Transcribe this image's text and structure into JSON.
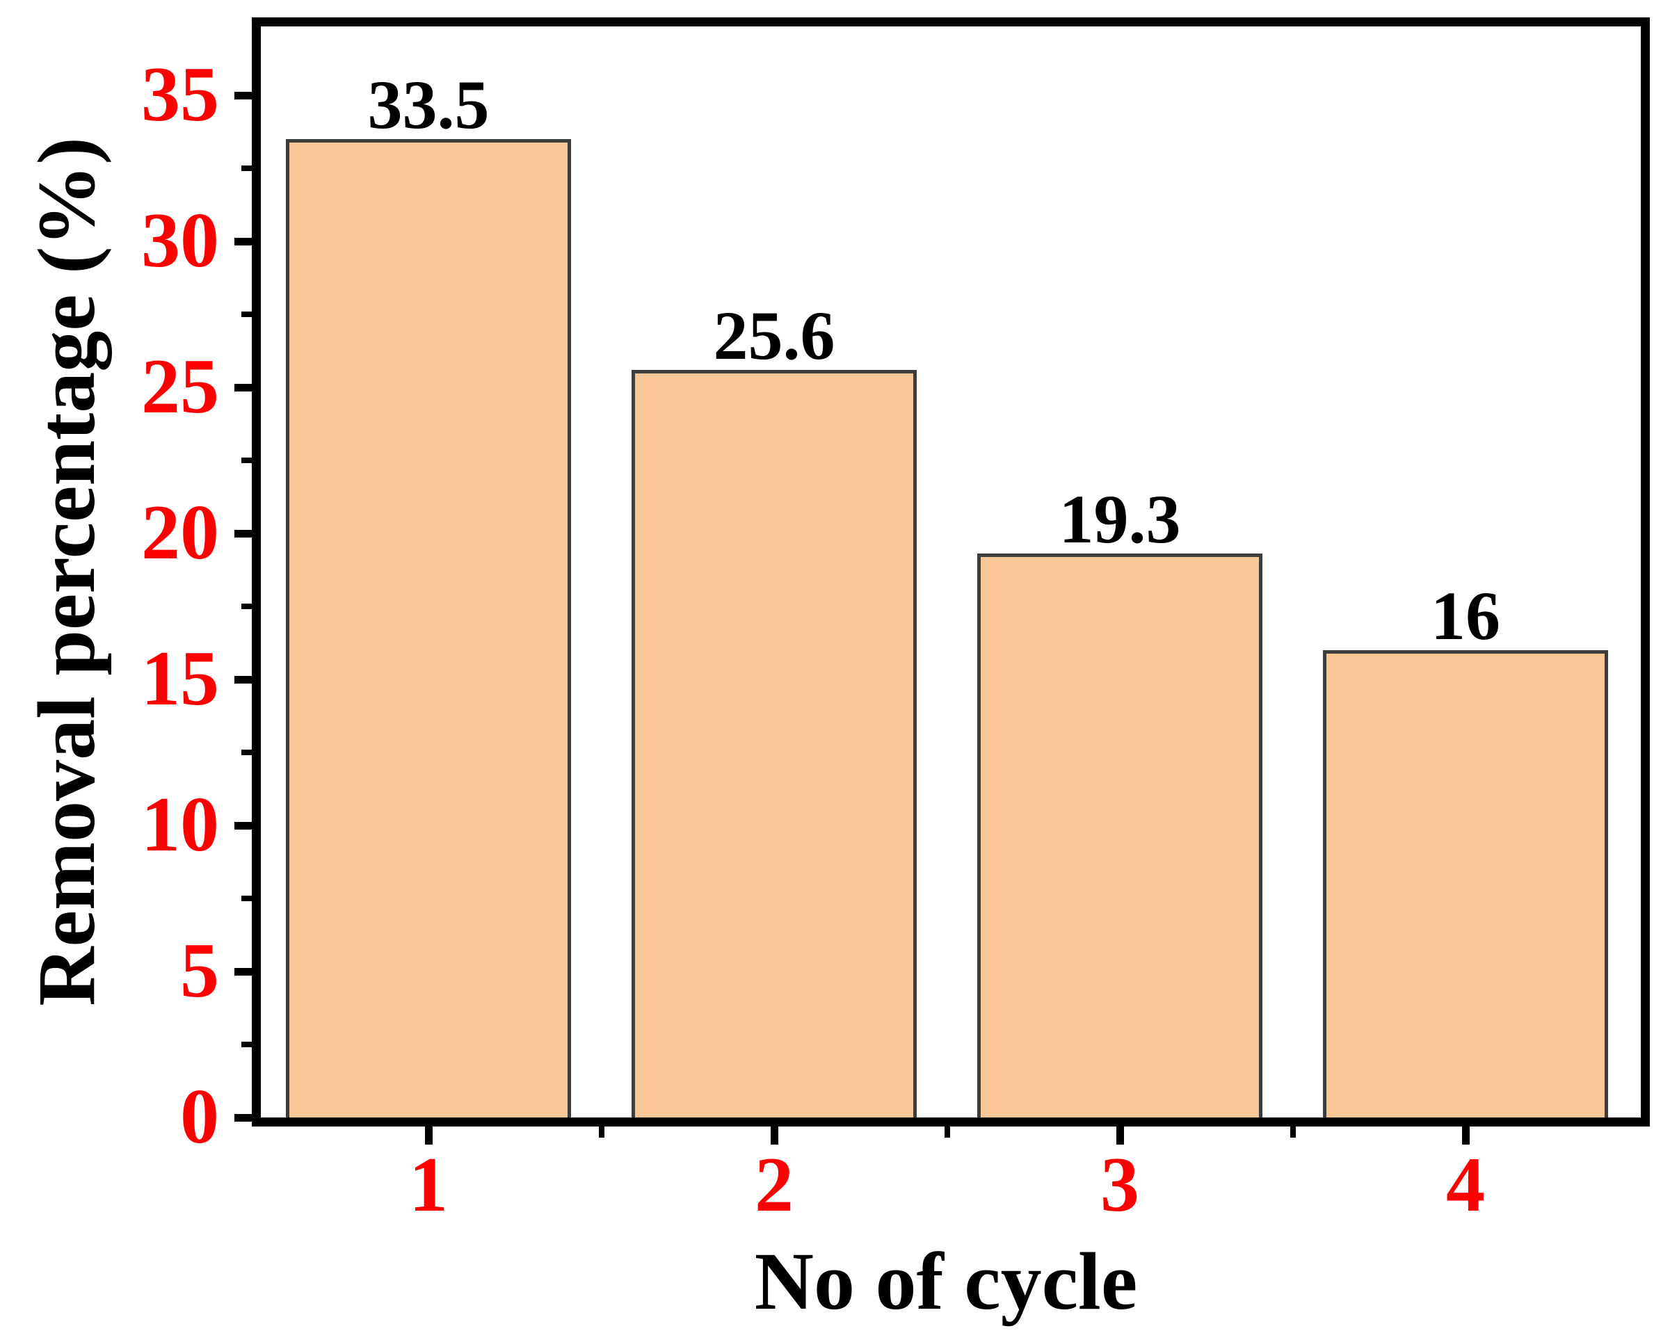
{
  "figure": {
    "background": "#FFFFFF"
  },
  "chart_data": {
    "type": "bar",
    "title": "",
    "xlabel": "No of cycle",
    "ylabel": "Removal percentage (%)",
    "categories": [
      "1",
      "2",
      "3",
      "4"
    ],
    "values": [
      33.5,
      25.6,
      19.3,
      16
    ],
    "bar_value_labels": [
      "33.5",
      "25.6",
      "19.3",
      "16"
    ],
    "x_positions": [
      1,
      2,
      3,
      4
    ],
    "xlim": [
      0.5,
      4.52
    ],
    "ylim": [
      0,
      37.3
    ],
    "yticks": [
      0,
      5,
      10,
      15,
      20,
      25,
      30,
      35
    ],
    "ytick_labels": [
      "0",
      "5",
      "10",
      "15",
      "20",
      "25",
      "30",
      "35"
    ],
    "minor_yticks": [
      2.5,
      7.5,
      12.5,
      17.5,
      22.5,
      27.5,
      32.5
    ],
    "minor_xticks": [
      1.5,
      2.5,
      3.5
    ],
    "grid": false,
    "legend": null,
    "tick_direction": "out",
    "colors": {
      "bar_fill": "#F9C795",
      "bar_edge": "#3D3D3D",
      "axis": "#000000",
      "ytick_label": "#FF0000",
      "xtick_label": "#FF0000",
      "value_label": "#000000",
      "axis_title": "#000000"
    }
  }
}
